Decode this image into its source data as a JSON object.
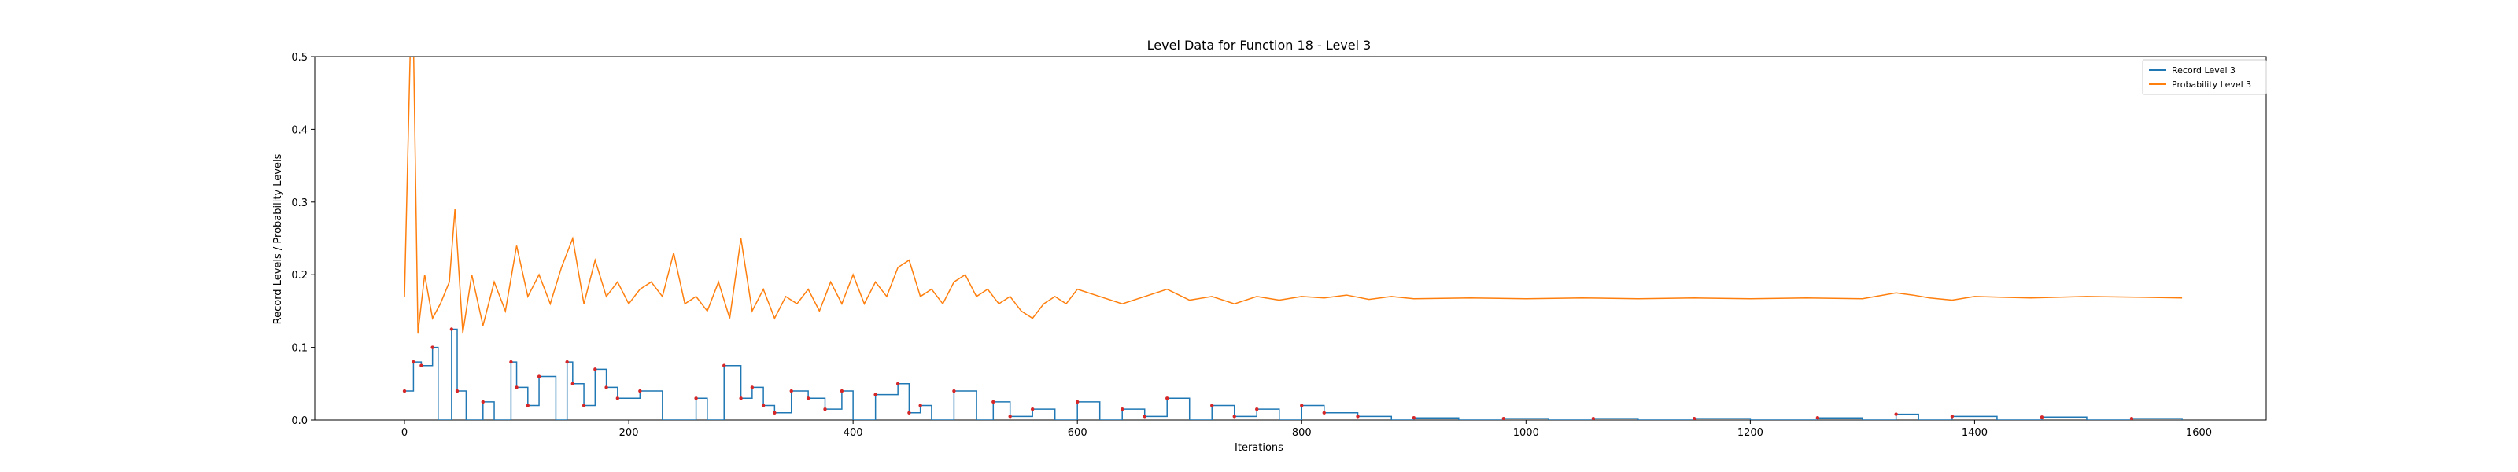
{
  "chart_data": {
    "type": "line",
    "title": "Level Data for Function 18 - Level 3",
    "xlabel": "Iterations",
    "ylabel": "Record Levels / Probability Levels",
    "xlim": [
      -80,
      1660
    ],
    "ylim": [
      0,
      0.5
    ],
    "xticks": [
      0,
      200,
      400,
      600,
      800,
      1000,
      1200,
      1400,
      1600
    ],
    "yticks": [
      0.0,
      0.1,
      0.2,
      0.3,
      0.4,
      0.5
    ],
    "grid": false,
    "legend_position": "top-right",
    "colors": {
      "record": "#1f77b4",
      "probability": "#ff7f0e",
      "markers": "#d62728"
    },
    "series": [
      {
        "name": "Record Level 3",
        "style": "step",
        "x": [
          0,
          8,
          15,
          25,
          30,
          42,
          47,
          55,
          70,
          80,
          95,
          100,
          110,
          120,
          135,
          145,
          150,
          160,
          170,
          180,
          190,
          210,
          230,
          260,
          270,
          285,
          300,
          310,
          320,
          330,
          345,
          360,
          375,
          390,
          400,
          420,
          440,
          450,
          460,
          470,
          490,
          510,
          525,
          540,
          560,
          580,
          600,
          620,
          640,
          660,
          680,
          700,
          720,
          740,
          760,
          780,
          800,
          820,
          850,
          880,
          900,
          940,
          980,
          1020,
          1060,
          1100,
          1150,
          1200,
          1260,
          1300,
          1330,
          1350,
          1380,
          1420,
          1460,
          1500,
          1540,
          1585
        ],
        "y": [
          0.04,
          0.08,
          0.075,
          0.1,
          0.0,
          0.125,
          0.04,
          0.0,
          0.025,
          0.0,
          0.08,
          0.045,
          0.02,
          0.06,
          0.0,
          0.08,
          0.05,
          0.02,
          0.07,
          0.045,
          0.03,
          0.04,
          0.0,
          0.03,
          0.0,
          0.075,
          0.03,
          0.045,
          0.02,
          0.01,
          0.04,
          0.03,
          0.015,
          0.04,
          0.0,
          0.035,
          0.05,
          0.01,
          0.02,
          0.0,
          0.04,
          0.0,
          0.025,
          0.005,
          0.015,
          0.0,
          0.025,
          0.0,
          0.015,
          0.005,
          0.03,
          0.0,
          0.02,
          0.005,
          0.015,
          0.0,
          0.02,
          0.01,
          0.005,
          0.0,
          0.003,
          0.0,
          0.002,
          0.0,
          0.002,
          0.0,
          0.002,
          0.0,
          0.003,
          0.0,
          0.008,
          0.0,
          0.005,
          0.0,
          0.004,
          0.0,
          0.002,
          0.0
        ]
      },
      {
        "name": "Probability Level 3",
        "style": "line",
        "x": [
          0,
          5,
          8,
          12,
          18,
          25,
          32,
          40,
          45,
          52,
          60,
          70,
          80,
          90,
          100,
          110,
          120,
          130,
          140,
          150,
          160,
          170,
          180,
          190,
          200,
          210,
          220,
          230,
          240,
          250,
          260,
          270,
          280,
          290,
          300,
          310,
          320,
          330,
          340,
          350,
          360,
          370,
          380,
          390,
          400,
          410,
          420,
          430,
          440,
          450,
          460,
          470,
          480,
          490,
          500,
          510,
          520,
          530,
          540,
          550,
          560,
          570,
          580,
          590,
          600,
          620,
          640,
          660,
          680,
          700,
          720,
          740,
          760,
          780,
          800,
          820,
          840,
          860,
          880,
          900,
          950,
          1000,
          1050,
          1100,
          1150,
          1200,
          1250,
          1300,
          1330,
          1345,
          1360,
          1380,
          1400,
          1450,
          1500,
          1550,
          1585
        ],
        "y": [
          0.17,
          0.5,
          0.52,
          0.12,
          0.2,
          0.14,
          0.16,
          0.19,
          0.29,
          0.12,
          0.2,
          0.13,
          0.19,
          0.15,
          0.24,
          0.17,
          0.2,
          0.16,
          0.21,
          0.25,
          0.16,
          0.22,
          0.17,
          0.19,
          0.16,
          0.18,
          0.19,
          0.17,
          0.23,
          0.16,
          0.17,
          0.15,
          0.19,
          0.14,
          0.25,
          0.15,
          0.18,
          0.14,
          0.17,
          0.16,
          0.18,
          0.15,
          0.19,
          0.16,
          0.2,
          0.16,
          0.19,
          0.17,
          0.21,
          0.22,
          0.17,
          0.18,
          0.16,
          0.19,
          0.2,
          0.17,
          0.18,
          0.16,
          0.17,
          0.15,
          0.14,
          0.16,
          0.17,
          0.16,
          0.18,
          0.17,
          0.16,
          0.17,
          0.18,
          0.165,
          0.17,
          0.16,
          0.17,
          0.165,
          0.17,
          0.168,
          0.172,
          0.166,
          0.17,
          0.167,
          0.168,
          0.167,
          0.168,
          0.167,
          0.168,
          0.167,
          0.168,
          0.167,
          0.175,
          0.172,
          0.168,
          0.165,
          0.17,
          0.168,
          0.17,
          0.169,
          0.168
        ]
      }
    ]
  }
}
